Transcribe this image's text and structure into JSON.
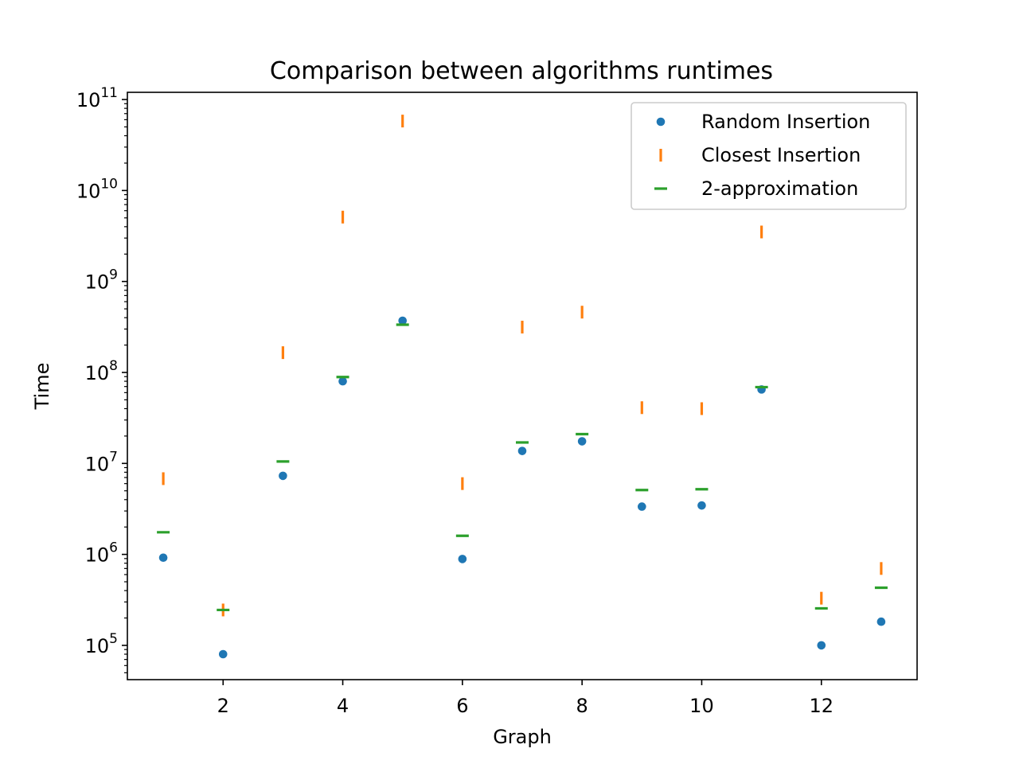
{
  "chart_data": {
    "type": "scatter",
    "title": "Comparison between algorithms runtimes",
    "xlabel": "Graph",
    "ylabel": "Time",
    "xscale": "linear",
    "yscale": "log",
    "xlim": [
      0.4,
      13.6
    ],
    "ylim": [
      42000,
      120000000000
    ],
    "x_ticks": [
      2,
      4,
      6,
      8,
      10,
      12
    ],
    "y_ticks": [
      {
        "base": "10",
        "exp": "5",
        "value": 100000
      },
      {
        "base": "10",
        "exp": "6",
        "value": 1000000
      },
      {
        "base": "10",
        "exp": "7",
        "value": 10000000
      },
      {
        "base": "10",
        "exp": "8",
        "value": 100000000
      },
      {
        "base": "10",
        "exp": "9",
        "value": 1000000000
      },
      {
        "base": "10",
        "exp": "10",
        "value": 10000000000
      },
      {
        "base": "10",
        "exp": "11",
        "value": 100000000000
      }
    ],
    "grid": false,
    "legend_position": "top-right",
    "x": [
      1,
      2,
      3,
      4,
      5,
      6,
      7,
      8,
      9,
      10,
      11,
      12,
      13
    ],
    "series": [
      {
        "name": "Random Insertion",
        "marker": "circle",
        "color": "#1f77b4",
        "values": [
          920000,
          80000,
          7300000,
          80000000,
          370000000,
          890000,
          13700000,
          17500000,
          3350000,
          3450000,
          65000000,
          100000,
          182000
        ]
      },
      {
        "name": "Closest Insertion",
        "marker": "vline",
        "color": "#ff7f0e",
        "values": [
          6800000,
          245000,
          165000000,
          5100000000,
          58000000000,
          6000000,
          315000000,
          460000000,
          41000000,
          40000000,
          3500000000,
          330000,
          700000
        ]
      },
      {
        "name": "2-approximation",
        "marker": "hline",
        "color": "#2ca02c",
        "values": [
          1750000,
          245000,
          10500000,
          89000000,
          335000000,
          1600000,
          17000000,
          21000000,
          5100000,
          5200000,
          69000000,
          255000,
          430000
        ]
      }
    ]
  }
}
